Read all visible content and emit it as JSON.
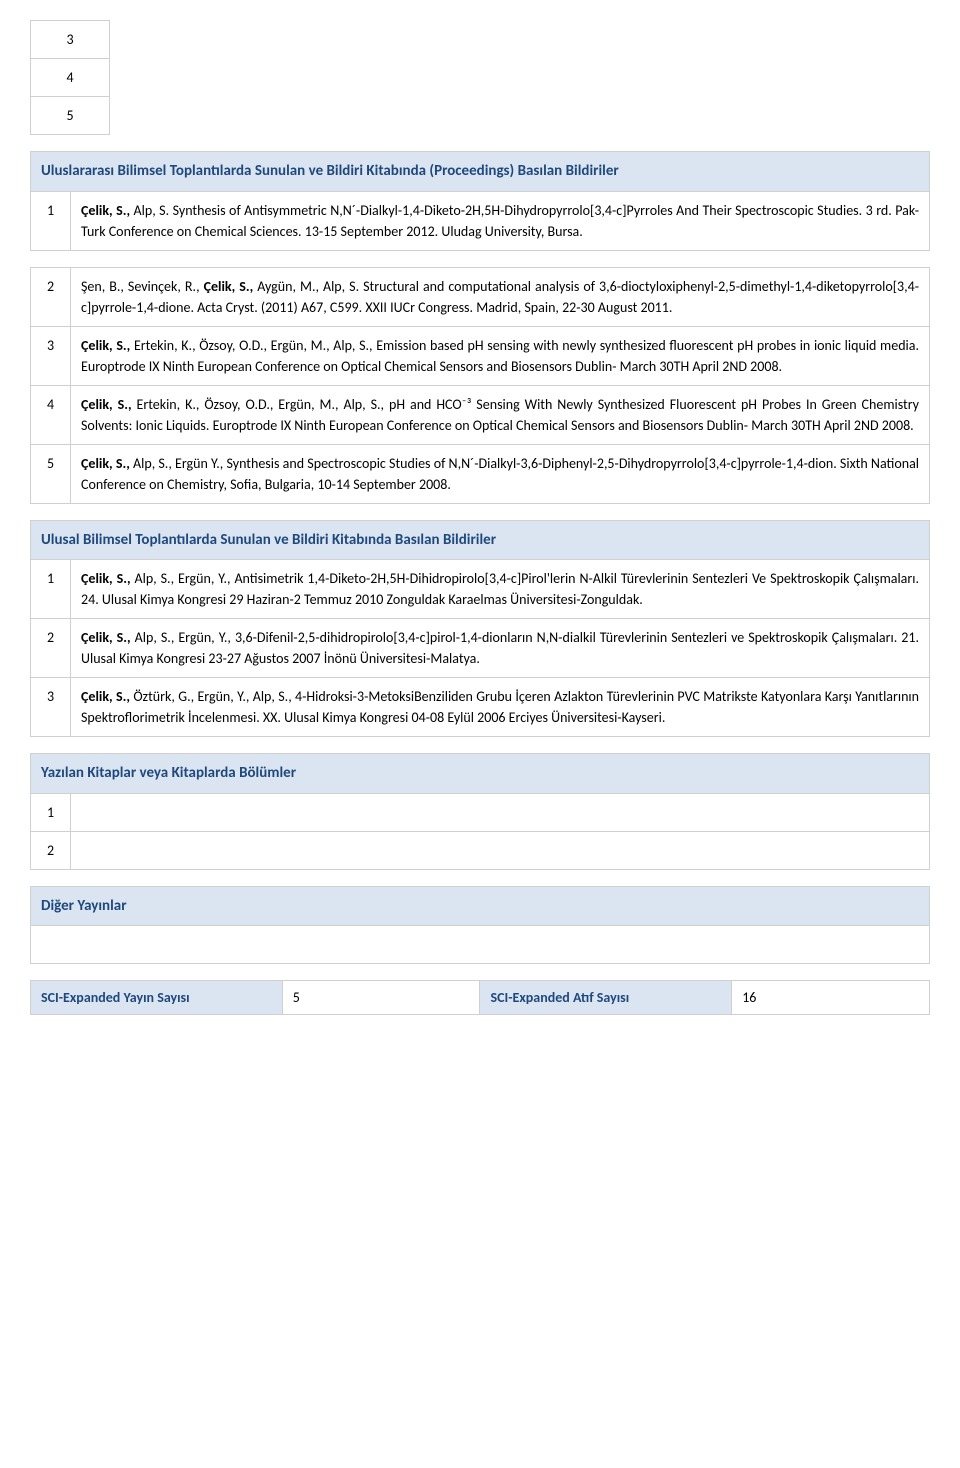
{
  "smallTable": {
    "rows": [
      "3",
      "4",
      "5"
    ]
  },
  "section_intl": {
    "title": "Uluslararası Bilimsel Toplantılarda Sunulan ve Bildiri Kitabında (Proceedings) Basılan Bildiriler",
    "items": [
      {
        "num": "1",
        "bold": "Çelik, S.,",
        "rest": " Alp, S. Synthesis of Antisymmetric N,N´-Dialkyl-1,4-Diketo-2H,5H-Dihydropyrrolo[3,4-c]Pyrroles And Their Spectroscopic Studies. 3 rd. Pak-Turk Conference on Chemical Sciences. 13-15 September 2012. Uludag University, Bursa."
      }
    ]
  },
  "section_intl2": {
    "items": [
      {
        "num": "2",
        "text_pre": "Şen, B., Sevinçek, R., ",
        "bold": "Çelik, S.,",
        "text_post": " Aygün, M., Alp, S. Structural and computational analysis of 3,6-dioctyloxiphenyl-2,5-dimethyl-1,4-diketopyrrolo[3,4-c]pyrrole-1,4-dione. Acta Cryst. (2011) A67, C599. XXII IUCr Congress. Madrid, Spain, 22-30 August 2011."
      },
      {
        "num": "3",
        "text_pre": "",
        "bold": "Çelik, S.,",
        "text_post": " Ertekin, K., Özsoy, O.D., Ergün, M., Alp, S., Emission based pH sensing with newly synthesized fluorescent pH probes in ionic liquid media. Europtrode IX Ninth European Conference on Optical Chemical Sensors and Biosensors Dublin- March 30TH April 2ND 2008."
      },
      {
        "num": "4",
        "text_pre": "",
        "bold": "Çelik, S.,",
        "text_post": " Ertekin, K., Özsoy, O.D., Ergün, M., Alp, S., pH and HCO⁻³ Sensing With Newly Synthesized Fluorescent pH Probes In Green Chemistry Solvents: Ionic Liquids. Europtrode IX Ninth European Conference on Optical Chemical Sensors and Biosensors Dublin- March 30TH April 2ND 2008."
      },
      {
        "num": "5",
        "text_pre": "",
        "bold": "Çelik, S.,",
        "text_post": " Alp, S., Ergün Y., Synthesis and Spectroscopic Studies of N,N´-Dialkyl-3,6-Diphenyl-2,5-Dihydropyrrolo[3,4-c]pyrrole-1,4-dion. Sixth National Conference on Chemistry, Sofia, Bulgaria, 10-14 September 2008."
      }
    ]
  },
  "section_national": {
    "title": "Ulusal Bilimsel Toplantılarda Sunulan ve Bildiri Kitabında Basılan Bildiriler",
    "items": [
      {
        "num": "1",
        "text_pre": "",
        "bold": "Çelik, S.,",
        "text_post": " Alp, S., Ergün, Y., Antisimetrik 1,4-Diketo-2H,5H-Dihidropirolo[3,4-c]Pirol'lerin N-Alkil Türevlerinin Sentezleri Ve Spektroskopik Çalışmaları. 24. Ulusal Kimya Kongresi 29 Haziran-2 Temmuz 2010 Zonguldak Karaelmas Üniversitesi-Zonguldak."
      },
      {
        "num": "2",
        "text_pre": "",
        "bold": "Çelik, S.,",
        "text_post": " Alp, S., Ergün, Y., 3,6-Difenil-2,5-dihidropirolo[3,4-c]pirol-1,4-dionların N,N-dialkil Türevlerinin Sentezleri ve Spektroskopik Çalışmaları. 21. Ulusal Kimya Kongresi 23-27 Ağustos 2007 İnönü Üniversitesi-Malatya."
      },
      {
        "num": "3",
        "text_pre": "",
        "bold": "Çelik, S.,",
        "text_post": " Öztürk, G., Ergün, Y., Alp, S., 4-Hidroksi-3-MetoksiBenziliden Grubu İçeren Azlakton Türevlerinin PVC Matrikste Katyonlara Karşı Yanıtlarının Spektroflorimetrik İncelenmesi. XX. Ulusal Kimya Kongresi 04-08 Eylül 2006 Erciyes Üniversitesi-Kayseri."
      }
    ]
  },
  "section_books": {
    "title": "Yazılan Kitaplar veya Kitaplarda Bölümler",
    "items": [
      {
        "num": "1",
        "text": ""
      },
      {
        "num": "2",
        "text": ""
      }
    ]
  },
  "section_other": {
    "title": "Diğer Yayınlar"
  },
  "stats": {
    "label1": "SCI-Expanded Yayın Sayısı",
    "val1": "5",
    "label2": "SCI-Expanded Atıf Sayısı",
    "val2": "16"
  }
}
